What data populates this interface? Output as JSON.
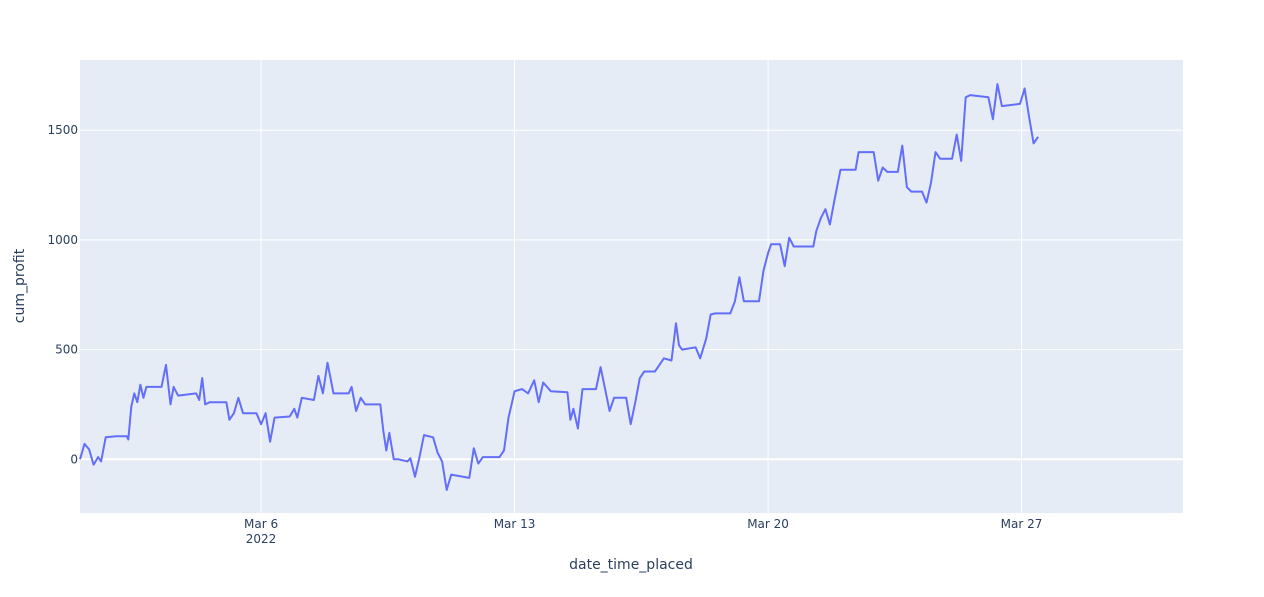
{
  "chart_data": {
    "type": "line",
    "title": "",
    "xlabel": "date_time_placed",
    "ylabel": "cum_profit",
    "x_tick_labels": [
      {
        "date": "2022-03-06",
        "label": "Mar 6",
        "sublabel": "2022"
      },
      {
        "date": "2022-03-13",
        "label": "Mar 13",
        "sublabel": ""
      },
      {
        "date": "2022-03-20",
        "label": "Mar 20",
        "sublabel": ""
      },
      {
        "date": "2022-03-27",
        "label": "Mar 27",
        "sublabel": ""
      }
    ],
    "y_ticks": [
      0,
      500,
      1000,
      1500
    ],
    "xlim": [
      "2022-03-01T00:00",
      "2022-03-31T11:00"
    ],
    "ylim": [
      -245,
      1820
    ],
    "grid": true,
    "colors": {
      "line": "#636efa",
      "plot_bg": "#e5ecf6",
      "grid": "#ffffff",
      "tick_text": "#2a3f5f"
    },
    "series": [
      {
        "points": [
          [
            "2022-03-01T00:00",
            0
          ],
          [
            "2022-03-01T03:00",
            70
          ],
          [
            "2022-03-01T06:00",
            45
          ],
          [
            "2022-03-01T09:00",
            -25
          ],
          [
            "2022-03-01T12:00",
            10
          ],
          [
            "2022-03-01T14:00",
            -10
          ],
          [
            "2022-03-01T17:00",
            100
          ],
          [
            "2022-03-02T00:00",
            105
          ],
          [
            "2022-03-02T07:00",
            105
          ],
          [
            "2022-03-02T08:00",
            90
          ],
          [
            "2022-03-02T10:00",
            240
          ],
          [
            "2022-03-02T12:00",
            300
          ],
          [
            "2022-03-02T14:00",
            260
          ],
          [
            "2022-03-02T16:00",
            340
          ],
          [
            "2022-03-02T18:00",
            280
          ],
          [
            "2022-03-02T20:00",
            330
          ],
          [
            "2022-03-03T06:00",
            330
          ],
          [
            "2022-03-03T09:00",
            430
          ],
          [
            "2022-03-03T12:00",
            250
          ],
          [
            "2022-03-03T14:00",
            330
          ],
          [
            "2022-03-03T17:00",
            290
          ],
          [
            "2022-03-04T05:00",
            300
          ],
          [
            "2022-03-04T07:00",
            270
          ],
          [
            "2022-03-04T09:00",
            370
          ],
          [
            "2022-03-04T11:00",
            250
          ],
          [
            "2022-03-04T14:00",
            260
          ],
          [
            "2022-03-05T01:00",
            260
          ],
          [
            "2022-03-05T03:00",
            180
          ],
          [
            "2022-03-05T06:00",
            210
          ],
          [
            "2022-03-05T09:00",
            280
          ],
          [
            "2022-03-05T12:00",
            210
          ],
          [
            "2022-03-05T21:00",
            210
          ],
          [
            "2022-03-06T00:00",
            160
          ],
          [
            "2022-03-06T03:00",
            210
          ],
          [
            "2022-03-06T06:00",
            80
          ],
          [
            "2022-03-06T09:00",
            190
          ],
          [
            "2022-03-06T19:00",
            195
          ],
          [
            "2022-03-06T22:00",
            230
          ],
          [
            "2022-03-07T00:00",
            190
          ],
          [
            "2022-03-07T03:00",
            280
          ],
          [
            "2022-03-07T11:00",
            270
          ],
          [
            "2022-03-07T14:00",
            380
          ],
          [
            "2022-03-07T17:00",
            300
          ],
          [
            "2022-03-07T20:00",
            440
          ],
          [
            "2022-03-08T00:00",
            300
          ],
          [
            "2022-03-08T10:00",
            300
          ],
          [
            "2022-03-08T12:00",
            330
          ],
          [
            "2022-03-08T15:00",
            220
          ],
          [
            "2022-03-08T18:00",
            280
          ],
          [
            "2022-03-08T21:00",
            250
          ],
          [
            "2022-03-09T07:00",
            250
          ],
          [
            "2022-03-09T09:00",
            130
          ],
          [
            "2022-03-09T11:00",
            40
          ],
          [
            "2022-03-09T13:00",
            120
          ],
          [
            "2022-03-09T16:00",
            0
          ],
          [
            "2022-03-09T19:00",
            0
          ],
          [
            "2022-03-10T01:00",
            -10
          ],
          [
            "2022-03-10T03:00",
            5
          ],
          [
            "2022-03-10T06:00",
            -80
          ],
          [
            "2022-03-10T09:00",
            10
          ],
          [
            "2022-03-10T12:00",
            110
          ],
          [
            "2022-03-10T18:00",
            100
          ],
          [
            "2022-03-10T21:00",
            30
          ],
          [
            "2022-03-11T00:00",
            -10
          ],
          [
            "2022-03-11T03:00",
            -140
          ],
          [
            "2022-03-11T06:00",
            -70
          ],
          [
            "2022-03-11T18:00",
            -85
          ],
          [
            "2022-03-11T21:00",
            50
          ],
          [
            "2022-03-12T00:00",
            -20
          ],
          [
            "2022-03-12T03:00",
            10
          ],
          [
            "2022-03-12T14:00",
            10
          ],
          [
            "2022-03-12T17:00",
            40
          ],
          [
            "2022-03-12T20:00",
            190
          ],
          [
            "2022-03-13T00:00",
            310
          ],
          [
            "2022-03-13T05:00",
            320
          ],
          [
            "2022-03-13T09:00",
            300
          ],
          [
            "2022-03-13T13:00",
            360
          ],
          [
            "2022-03-13T16:00",
            260
          ],
          [
            "2022-03-13T19:00",
            350
          ],
          [
            "2022-03-14T00:00",
            310
          ],
          [
            "2022-03-14T11:00",
            305
          ],
          [
            "2022-03-14T13:00",
            180
          ],
          [
            "2022-03-14T15:00",
            230
          ],
          [
            "2022-03-14T18:00",
            140
          ],
          [
            "2022-03-14T21:00",
            320
          ],
          [
            "2022-03-15T06:00",
            320
          ],
          [
            "2022-03-15T09:00",
            420
          ],
          [
            "2022-03-15T12:00",
            320
          ],
          [
            "2022-03-15T15:00",
            220
          ],
          [
            "2022-03-15T18:00",
            280
          ],
          [
            "2022-03-16T02:00",
            280
          ],
          [
            "2022-03-16T05:00",
            160
          ],
          [
            "2022-03-16T08:00",
            260
          ],
          [
            "2022-03-16T11:00",
            370
          ],
          [
            "2022-03-16T14:00",
            400
          ],
          [
            "2022-03-16T21:00",
            400
          ],
          [
            "2022-03-17T00:00",
            430
          ],
          [
            "2022-03-17T03:00",
            460
          ],
          [
            "2022-03-17T08:00",
            450
          ],
          [
            "2022-03-17T11:00",
            620
          ],
          [
            "2022-03-17T13:00",
            520
          ],
          [
            "2022-03-17T15:00",
            500
          ],
          [
            "2022-03-18T00:00",
            510
          ],
          [
            "2022-03-18T03:00",
            460
          ],
          [
            "2022-03-18T07:00",
            550
          ],
          [
            "2022-03-18T10:00",
            660
          ],
          [
            "2022-03-18T13:00",
            665
          ],
          [
            "2022-03-18T23:00",
            665
          ],
          [
            "2022-03-19T02:00",
            720
          ],
          [
            "2022-03-19T05:00",
            830
          ],
          [
            "2022-03-19T08:00",
            720
          ],
          [
            "2022-03-19T18:00",
            720
          ],
          [
            "2022-03-19T21:00",
            860
          ],
          [
            "2022-03-20T00:00",
            940
          ],
          [
            "2022-03-20T02:00",
            980
          ],
          [
            "2022-03-20T08:00",
            980
          ],
          [
            "2022-03-20T11:00",
            880
          ],
          [
            "2022-03-20T14:00",
            1010
          ],
          [
            "2022-03-20T17:00",
            970
          ],
          [
            "2022-03-21T06:00",
            970
          ],
          [
            "2022-03-21T08:00",
            1040
          ],
          [
            "2022-03-21T11:00",
            1100
          ],
          [
            "2022-03-21T14:00",
            1140
          ],
          [
            "2022-03-21T17:00",
            1070
          ],
          [
            "2022-03-21T20:00",
            1180
          ],
          [
            "2022-03-22T00:00",
            1320
          ],
          [
            "2022-03-22T10:00",
            1320
          ],
          [
            "2022-03-22T12:00",
            1400
          ],
          [
            "2022-03-22T22:00",
            1400
          ],
          [
            "2022-03-23T01:00",
            1270
          ],
          [
            "2022-03-23T04:00",
            1330
          ],
          [
            "2022-03-23T07:00",
            1310
          ],
          [
            "2022-03-23T14:00",
            1310
          ],
          [
            "2022-03-23T17:00",
            1430
          ],
          [
            "2022-03-23T20:00",
            1240
          ],
          [
            "2022-03-23T23:00",
            1220
          ],
          [
            "2022-03-24T06:00",
            1220
          ],
          [
            "2022-03-24T09:00",
            1170
          ],
          [
            "2022-03-24T12:00",
            1260
          ],
          [
            "2022-03-24T15:00",
            1400
          ],
          [
            "2022-03-24T18:00",
            1370
          ],
          [
            "2022-03-25T02:00",
            1370
          ],
          [
            "2022-03-25T05:00",
            1480
          ],
          [
            "2022-03-25T08:00",
            1360
          ],
          [
            "2022-03-25T11:00",
            1650
          ],
          [
            "2022-03-25T14:00",
            1660
          ],
          [
            "2022-03-26T02:00",
            1650
          ],
          [
            "2022-03-26T05:00",
            1550
          ],
          [
            "2022-03-26T08:00",
            1710
          ],
          [
            "2022-03-26T11:00",
            1610
          ],
          [
            "2022-03-26T23:00",
            1620
          ],
          [
            "2022-03-27T02:00",
            1690
          ],
          [
            "2022-03-27T05:00",
            1560
          ],
          [
            "2022-03-27T08:00",
            1440
          ],
          [
            "2022-03-27T11:00",
            1470
          ]
        ]
      }
    ]
  }
}
